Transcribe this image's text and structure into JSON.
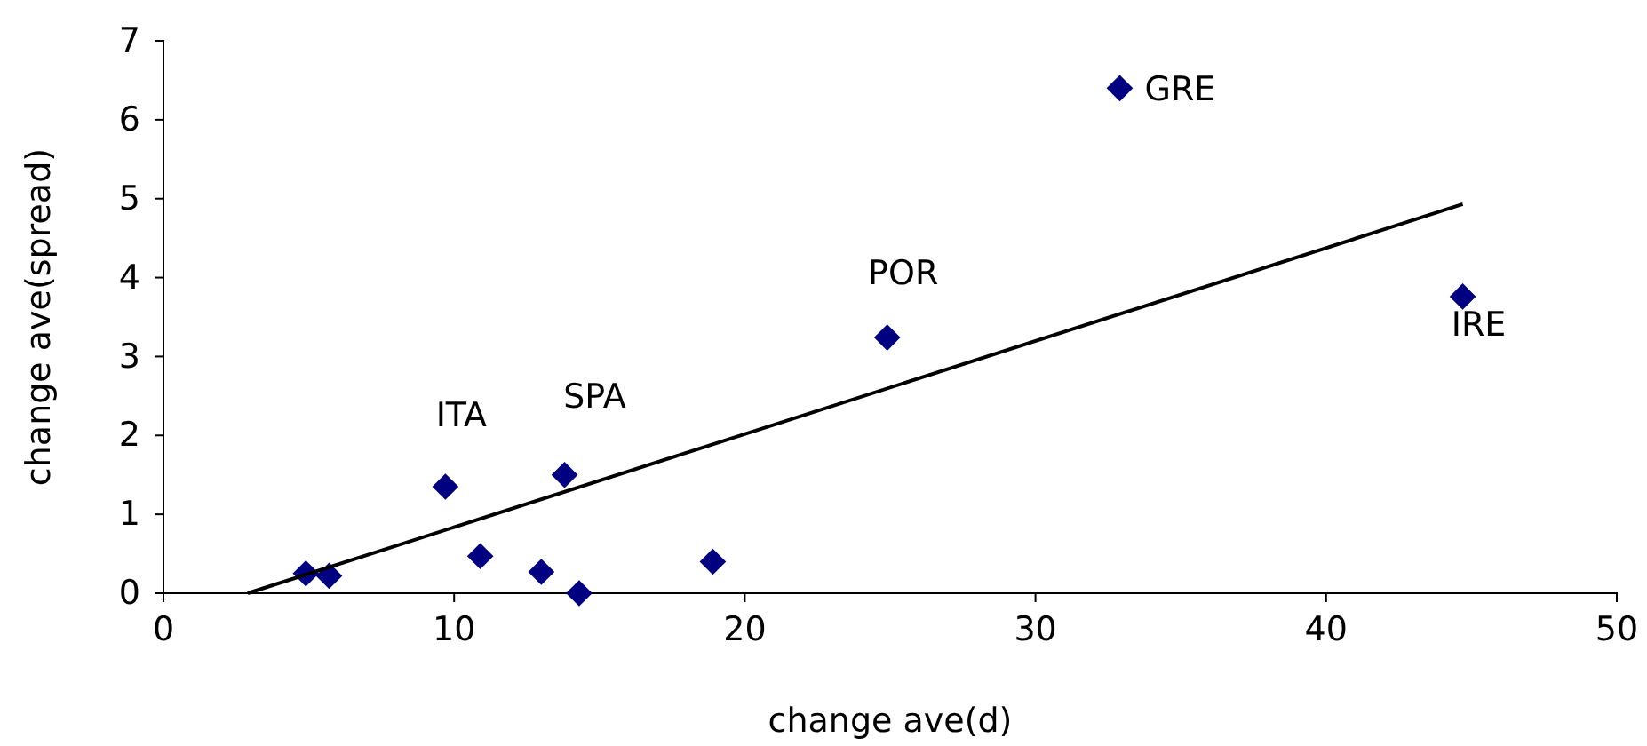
{
  "chart_data": {
    "type": "scatter",
    "xlabel": "change ave(d)",
    "ylabel": "change ave(spread)",
    "xlim": [
      0,
      50
    ],
    "xticks": [
      0,
      10,
      20,
      30,
      40,
      50
    ],
    "ylim": [
      0,
      7
    ],
    "yticks": [
      0,
      1,
      2,
      3,
      4,
      5,
      6,
      7
    ],
    "grid": false,
    "series": [
      {
        "marker": "diamond",
        "color": "#000080",
        "x": [
          4.9,
          5.7,
          9.7,
          10.9,
          13.0,
          13.8,
          14.3,
          18.9,
          24.9,
          32.9,
          44.7
        ],
        "values": [
          0.25,
          0.22,
          1.35,
          0.47,
          0.27,
          1.5,
          0.0,
          0.4,
          3.24,
          6.4,
          3.76
        ]
      },
      {
        "type": "line",
        "color": "#000000",
        "x": [
          2.9,
          44.7
        ],
        "values": [
          0,
          4.93
        ]
      }
    ],
    "annotations": [
      {
        "text": "ITA",
        "x": 9.7,
        "y": 1.35
      },
      {
        "text": "SPA",
        "x": 13.8,
        "y": 1.5
      },
      {
        "text": "POR",
        "x": 24.9,
        "y": 3.24
      },
      {
        "text": "GRE",
        "x": 32.9,
        "y": 6.4
      },
      {
        "text": "IRE",
        "x": 44.7,
        "y": 3.76
      }
    ]
  }
}
